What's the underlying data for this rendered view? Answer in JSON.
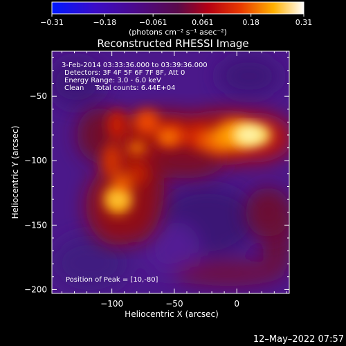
{
  "colorbar": {
    "tick_labels": [
      "−0.31",
      "−0.18",
      "−0.061",
      "0.061",
      "0.18",
      "0.31"
    ],
    "tick_values": [
      -0.31,
      -0.18,
      -0.061,
      0.061,
      0.18,
      0.31
    ],
    "range": [
      -0.31,
      0.31
    ],
    "unit_label": "(photons cm⁻² s⁻¹ asec⁻²)"
  },
  "chart_data": {
    "type": "heatmap",
    "title": "Reconstructed RHESSI Image",
    "xlabel": "Heliocentric X (arcsec)",
    "ylabel": "Heliocentric Y (arcsec)",
    "xlim": [
      -148,
      42
    ],
    "ylim": [
      -203,
      -15
    ],
    "x_ticks": [
      -100,
      -50,
      0
    ],
    "x_tick_labels": [
      "−100",
      "−50",
      "0"
    ],
    "y_ticks": [
      -50,
      -100,
      -150,
      -200
    ],
    "y_tick_labels": [
      "−50",
      "−100",
      "−150",
      "−200"
    ],
    "colormap": "blue-purple-red-yellow-white",
    "info_lines": [
      "3-Feb-2014 03:33:36.000 to 03:39:36.000",
      "Detectors: 3F 4F 5F 6F 7F 8F, Att 0",
      "Energy Range: 3.0 - 6.0 keV",
      "Clean     Total counts: 6.44E+04"
    ],
    "peak_label": "Position of Peak = [10,-80]",
    "peak_position": [
      10,
      -80
    ],
    "sources": [
      {
        "x": 10,
        "y": -80,
        "intensity": 0.31
      },
      {
        "x": -95,
        "y": -130,
        "intensity": 0.22
      },
      {
        "x": -55,
        "y": -82,
        "intensity": 0.16
      },
      {
        "x": -80,
        "y": -90,
        "intensity": 0.15
      }
    ]
  },
  "timestamp": "12–May–2022 07:57"
}
